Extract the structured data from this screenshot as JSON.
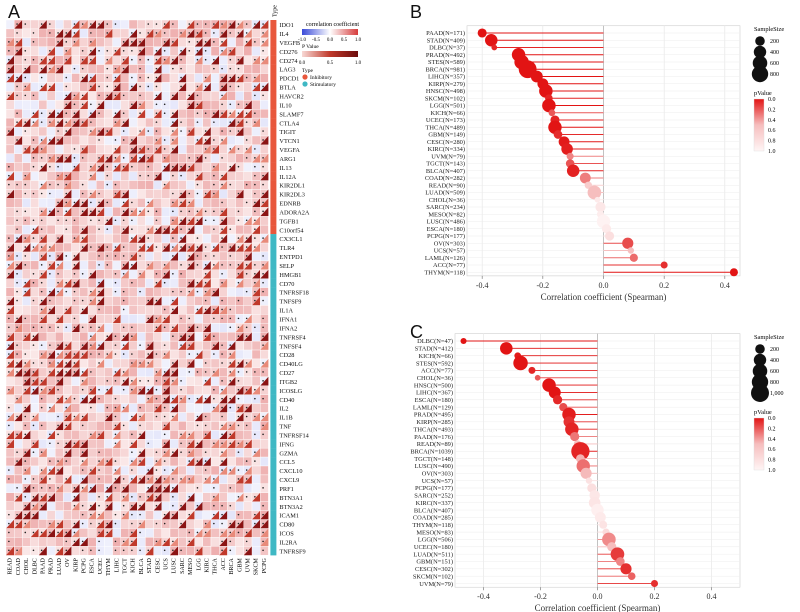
{
  "panels": {
    "a": "A",
    "b": "B",
    "c": "C"
  },
  "chart_data": [
    {
      "type": "heatmap",
      "panel": "A",
      "rows": [
        "IDO1",
        "IL4",
        "VEGFB",
        "CD276",
        "CD274",
        "LAG3",
        "PDCD1",
        "BTLA",
        "HAVCR2",
        "IL10",
        "SLAMF7",
        "CTLA4",
        "TIGIT",
        "VTCN1",
        "VEGFA",
        "ARG1",
        "IL13",
        "IL12A",
        "KIR2DL1",
        "KIR2DL3",
        "EDNRB",
        "ADORA2A",
        "TGFB1",
        "C10orf54",
        "CX3CL1",
        "TLR4",
        "ENTPD1",
        "SELP",
        "HMGB1",
        "CD70",
        "TNFRSF18",
        "TNFSF9",
        "IL1A",
        "IFNA1",
        "IFNA2",
        "TNFRSF4",
        "TNFSF4",
        "CD28",
        "CD40LG",
        "CD27",
        "ITGB2",
        "ICOSLG",
        "CD40",
        "IL2",
        "IL1B",
        "TNF",
        "TNFRSF14",
        "IFNG",
        "GZMA",
        "CCL5",
        "CXCL10",
        "CXCL9",
        "PRF1",
        "BTN3A1",
        "BTN3A2",
        "ICAM1",
        "CD80",
        "ICOS",
        "IL2RA",
        "TNFRSF9"
      ],
      "row_types": [
        "Inhibitory",
        "Inhibitory",
        "Inhibitory",
        "Inhibitory",
        "Inhibitory",
        "Inhibitory",
        "Inhibitory",
        "Inhibitory",
        "Inhibitory",
        "Inhibitory",
        "Inhibitory",
        "Inhibitory",
        "Inhibitory",
        "Inhibitory",
        "Inhibitory",
        "Inhibitory",
        "Inhibitory",
        "Inhibitory",
        "Inhibitory",
        "Inhibitory",
        "Inhibitory",
        "Inhibitory",
        "Inhibitory",
        "Inhibitory",
        "Stimulatory",
        "Stimulatory",
        "Stimulatory",
        "Stimulatory",
        "Stimulatory",
        "Stimulatory",
        "Stimulatory",
        "Stimulatory",
        "Stimulatory",
        "Stimulatory",
        "Stimulatory",
        "Stimulatory",
        "Stimulatory",
        "Stimulatory",
        "Stimulatory",
        "Stimulatory",
        "Stimulatory",
        "Stimulatory",
        "Stimulatory",
        "Stimulatory",
        "Stimulatory",
        "Stimulatory",
        "Stimulatory",
        "Stimulatory",
        "Stimulatory",
        "Stimulatory",
        "Stimulatory",
        "Stimulatory",
        "Stimulatory",
        "Stimulatory",
        "Stimulatory",
        "Stimulatory",
        "Stimulatory",
        "Stimulatory",
        "Stimulatory",
        "Stimulatory"
      ],
      "columns": [
        "READ",
        "COAD",
        "CHOL",
        "DLBC",
        "PAAD",
        "PRAD",
        "LUAD",
        "OV",
        "KIRP",
        "PCPG",
        "ESCA",
        "UCEC",
        "THYM",
        "LIHC",
        "TGCT",
        "KICH",
        "BLCA",
        "STAD",
        "CESC",
        "UCS",
        "LUSC",
        "SARC",
        "MESO",
        "LGG",
        "KIRC",
        "THCA",
        "ACC",
        "BRCA",
        "GBM",
        "UVM",
        "SKCM",
        "PCPG"
      ],
      "type_label": "Type",
      "legend": {
        "title": "correlation coefficient",
        "ticks": [
          "-1.0",
          "-0.5",
          "0.0",
          "0.5",
          "1.0"
        ],
        "pvalue_title": "P Value",
        "pvalue_ticks": [
          "0.0",
          "0.5",
          "1.0"
        ],
        "type_title": "Type",
        "type_items": [
          {
            "name": "Inhibitory",
            "color": "#e8573c"
          },
          {
            "name": "Stimulatory",
            "color": "#3fb8c4"
          }
        ]
      }
    },
    {
      "type": "scatter",
      "panel": "B",
      "xlabel": "Correlation coefficient (Spearman)",
      "xlim": [
        -0.45,
        0.45
      ],
      "xticks": [
        -0.4,
        -0.2,
        0.0,
        0.2,
        0.4
      ],
      "points": [
        {
          "label": "PAAD(N=171)",
          "r": -0.4,
          "n": 171,
          "p": 0.0
        },
        {
          "label": "STAD(N=409)",
          "r": -0.37,
          "n": 409,
          "p": 0.0
        },
        {
          "label": "DLBC(N=37)",
          "r": -0.36,
          "n": 37,
          "p": 0.05
        },
        {
          "label": "PRAD(N=492)",
          "r": -0.28,
          "n": 492,
          "p": 0.0
        },
        {
          "label": "STES(N=589)",
          "r": -0.27,
          "n": 589,
          "p": 0.0
        },
        {
          "label": "BRCA(N=981)",
          "r": -0.25,
          "n": 981,
          "p": 0.0
        },
        {
          "label": "LIHC(N=357)",
          "r": -0.22,
          "n": 357,
          "p": 0.0
        },
        {
          "label": "KIRP(N=279)",
          "r": -0.2,
          "n": 279,
          "p": 0.0
        },
        {
          "label": "HNSC(N=498)",
          "r": -0.19,
          "n": 498,
          "p": 0.0
        },
        {
          "label": "SKCM(N=102)",
          "r": -0.18,
          "n": 102,
          "p": 0.05
        },
        {
          "label": "LGG(N=501)",
          "r": -0.18,
          "n": 501,
          "p": 0.0
        },
        {
          "label": "KICH(N=66)",
          "r": -0.17,
          "n": 66,
          "p": 0.2
        },
        {
          "label": "UCEC(N=173)",
          "r": -0.16,
          "n": 173,
          "p": 0.05
        },
        {
          "label": "THCA(N=489)",
          "r": -0.16,
          "n": 489,
          "p": 0.0
        },
        {
          "label": "GBM(N=149)",
          "r": -0.15,
          "n": 149,
          "p": 0.07
        },
        {
          "label": "CESC(N=280)",
          "r": -0.13,
          "n": 280,
          "p": 0.02
        },
        {
          "label": "KIRC(N=334)",
          "r": -0.12,
          "n": 334,
          "p": 0.03
        },
        {
          "label": "UVM(N=79)",
          "r": -0.11,
          "n": 79,
          "p": 0.33
        },
        {
          "label": "TGCT(N=143)",
          "r": -0.11,
          "n": 143,
          "p": 0.19
        },
        {
          "label": "BLCA(N=407)",
          "r": -0.1,
          "n": 407,
          "p": 0.04
        },
        {
          "label": "COAD(N=282)",
          "r": -0.06,
          "n": 282,
          "p": 0.31
        },
        {
          "label": "READ(N=90)",
          "r": -0.05,
          "n": 90,
          "p": 0.64
        },
        {
          "label": "LUAD(N=509)",
          "r": -0.03,
          "n": 509,
          "p": 0.5
        },
        {
          "label": "CHOL(N=36)",
          "r": -0.02,
          "n": 36,
          "p": 0.9
        },
        {
          "label": "SARC(N=234)",
          "r": -0.01,
          "n": 234,
          "p": 0.88
        },
        {
          "label": "MESO(N=82)",
          "r": -0.01,
          "n": 82,
          "p": 0.93
        },
        {
          "label": "LUSC(N=486)",
          "r": 0.0,
          "n": 486,
          "p": 0.98
        },
        {
          "label": "ESCA(N=180)",
          "r": 0.01,
          "n": 180,
          "p": 0.9
        },
        {
          "label": "PCPG(N=177)",
          "r": 0.02,
          "n": 177,
          "p": 0.8
        },
        {
          "label": "OV(N=303)",
          "r": 0.08,
          "n": 303,
          "p": 0.17
        },
        {
          "label": "UCS(N=57)",
          "r": 0.09,
          "n": 57,
          "p": 0.5
        },
        {
          "label": "LAML(N=126)",
          "r": 0.1,
          "n": 126,
          "p": 0.26
        },
        {
          "label": "ACC(N=77)",
          "r": 0.2,
          "n": 77,
          "p": 0.08
        },
        {
          "label": "THYM(N=118)",
          "r": 0.43,
          "n": 118,
          "p": 0.0
        }
      ],
      "size_legend": {
        "title": "SampleSize",
        "ticks": [
          200,
          400,
          600,
          800
        ]
      },
      "color_legend": {
        "title": "pValue",
        "ticks": [
          "0.0",
          "0.2",
          "0.4",
          "0.6",
          "0.8",
          "1.0"
        ]
      }
    },
    {
      "type": "scatter",
      "panel": "C",
      "xlabel": "Correlation coefficient (Spearman)",
      "xlim": [
        -0.5,
        0.5
      ],
      "xticks": [
        -0.4,
        -0.2,
        0.0,
        0.2,
        0.4
      ],
      "points": [
        {
          "label": "DLBC(N=47)",
          "r": -0.47,
          "n": 47,
          "p": 0.0
        },
        {
          "label": "STAD(N=412)",
          "r": -0.32,
          "n": 412,
          "p": 0.0
        },
        {
          "label": "KICH(N=66)",
          "r": -0.28,
          "n": 66,
          "p": 0.02
        },
        {
          "label": "STES(N=592)",
          "r": -0.27,
          "n": 592,
          "p": 0.0
        },
        {
          "label": "ACC(N=77)",
          "r": -0.23,
          "n": 77,
          "p": 0.05
        },
        {
          "label": "CHOL(N=36)",
          "r": -0.21,
          "n": 36,
          "p": 0.2
        },
        {
          "label": "HNSC(N=500)",
          "r": -0.17,
          "n": 500,
          "p": 0.0
        },
        {
          "label": "LIHC(N=367)",
          "r": -0.15,
          "n": 367,
          "p": 0.0
        },
        {
          "label": "ESCA(N=180)",
          "r": -0.14,
          "n": 180,
          "p": 0.06
        },
        {
          "label": "LAML(N=129)",
          "r": -0.12,
          "n": 129,
          "p": 0.17
        },
        {
          "label": "PRAD(N=495)",
          "r": -0.1,
          "n": 495,
          "p": 0.03
        },
        {
          "label": "KIRP(N=285)",
          "r": -0.1,
          "n": 285,
          "p": 0.09
        },
        {
          "label": "THCA(N=493)",
          "r": -0.09,
          "n": 493,
          "p": 0.05
        },
        {
          "label": "PAAD(N=176)",
          "r": -0.08,
          "n": 176,
          "p": 0.29
        },
        {
          "label": "READ(N=89)",
          "r": -0.07,
          "n": 89,
          "p": 0.5
        },
        {
          "label": "BRCA(N=1039)",
          "r": -0.06,
          "n": 1039,
          "p": 0.05
        },
        {
          "label": "TGCT(N=148)",
          "r": -0.06,
          "n": 148,
          "p": 0.47
        },
        {
          "label": "LUSC(N=490)",
          "r": -0.05,
          "n": 490,
          "p": 0.27
        },
        {
          "label": "OV(N=303)",
          "r": -0.04,
          "n": 303,
          "p": 0.49
        },
        {
          "label": "UCS(N=57)",
          "r": -0.03,
          "n": 57,
          "p": 0.83
        },
        {
          "label": "PCPG(N=177)",
          "r": -0.02,
          "n": 177,
          "p": 0.8
        },
        {
          "label": "SARC(N=252)",
          "r": -0.01,
          "n": 252,
          "p": 0.88
        },
        {
          "label": "KIRC(N=337)",
          "r": -0.01,
          "n": 337,
          "p": 0.86
        },
        {
          "label": "BLCA(N=407)",
          "r": 0.0,
          "n": 407,
          "p": 0.95
        },
        {
          "label": "COAD(N=285)",
          "r": 0.01,
          "n": 285,
          "p": 0.9
        },
        {
          "label": "THYM(N=118)",
          "r": 0.02,
          "n": 118,
          "p": 0.84
        },
        {
          "label": "MESO(N=83)",
          "r": 0.03,
          "n": 83,
          "p": 0.78
        },
        {
          "label": "LGG(N=506)",
          "r": 0.04,
          "n": 506,
          "p": 0.35
        },
        {
          "label": "UCEC(N=180)",
          "r": 0.05,
          "n": 180,
          "p": 0.5
        },
        {
          "label": "LUAD(N=511)",
          "r": 0.07,
          "n": 511,
          "p": 0.12
        },
        {
          "label": "GBM(N=151)",
          "r": 0.08,
          "n": 151,
          "p": 0.33
        },
        {
          "label": "CESC(N=302)",
          "r": 0.1,
          "n": 302,
          "p": 0.08
        },
        {
          "label": "SKCM(N=102)",
          "r": 0.12,
          "n": 102,
          "p": 0.23
        },
        {
          "label": "UVM(N=79)",
          "r": 0.2,
          "n": 79,
          "p": 0.08
        }
      ],
      "size_legend": {
        "title": "SampleSize",
        "ticks": [
          200,
          400,
          600,
          800,
          "1,000"
        ]
      },
      "color_legend": {
        "title": "pValue",
        "ticks": [
          "0.0",
          "0.2",
          "0.4",
          "0.6",
          "0.8",
          "1.0"
        ]
      }
    }
  ]
}
